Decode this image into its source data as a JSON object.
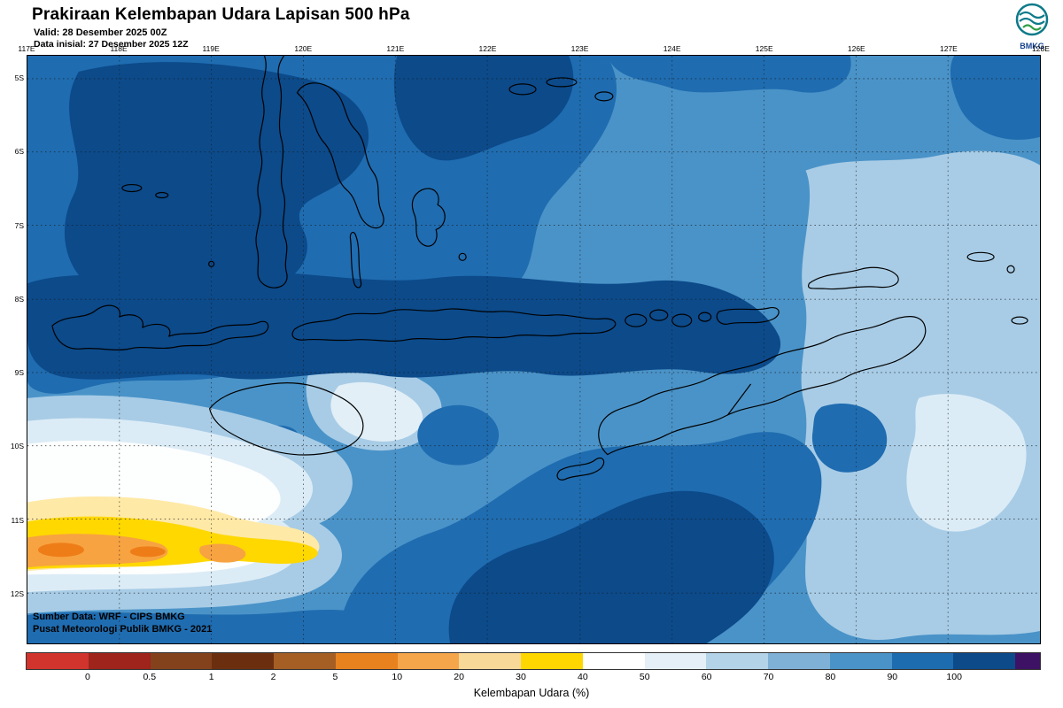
{
  "header": {
    "title": "Prakiraan Kelembapan Udara Lapisan 500 hPa",
    "valid_line": "Valid: 28 Desember 2025 00Z",
    "init_line": "Data inisial: 27 Desember 2025 12Z",
    "logo_label": "BMKG"
  },
  "map": {
    "lon_labels": [
      "117E",
      "118E",
      "119E",
      "120E",
      "121E",
      "122E",
      "123E",
      "124E",
      "125E",
      "126E",
      "127E",
      "128E"
    ],
    "lat_labels": [
      "5S",
      "6S",
      "7S",
      "8S",
      "9S",
      "10S",
      "11S",
      "12S"
    ],
    "attribution_line1": "Sumber Data: WRF - CIPS BMKG",
    "attribution_line2": "Pusat Meteorologi Publik BMKG - 2021"
  },
  "colorbar": {
    "caption": "Kelembapan Udara (%)",
    "unit": "%",
    "tick_labels": [
      "0",
      "0.5",
      "1",
      "2",
      "5",
      "10",
      "20",
      "30",
      "40",
      "50",
      "60",
      "70",
      "80",
      "90",
      "100"
    ],
    "segments": [
      {
        "color": "#d0342c",
        "w": 1
      },
      {
        "color": "#9e241c",
        "w": 1
      },
      {
        "color": "#84421c",
        "w": 1
      },
      {
        "color": "#6b2f10",
        "w": 1
      },
      {
        "color": "#a55e24",
        "w": 1
      },
      {
        "color": "#e8821e",
        "w": 1
      },
      {
        "color": "#f5a54a",
        "w": 1
      },
      {
        "color": "#f8d998",
        "w": 1
      },
      {
        "color": "#ffd700",
        "w": 1
      },
      {
        "color": "#ffffff",
        "w": 1
      },
      {
        "color": "#e4eff7",
        "w": 1
      },
      {
        "color": "#b3d3e8",
        "w": 1
      },
      {
        "color": "#7fb0d6",
        "w": 1
      },
      {
        "color": "#4a93c8",
        "w": 1
      },
      {
        "color": "#1e6cb0",
        "w": 1
      },
      {
        "color": "#0c4a8a",
        "w": 1
      },
      {
        "color": "#3d1163",
        "w": 0.4
      }
    ]
  }
}
